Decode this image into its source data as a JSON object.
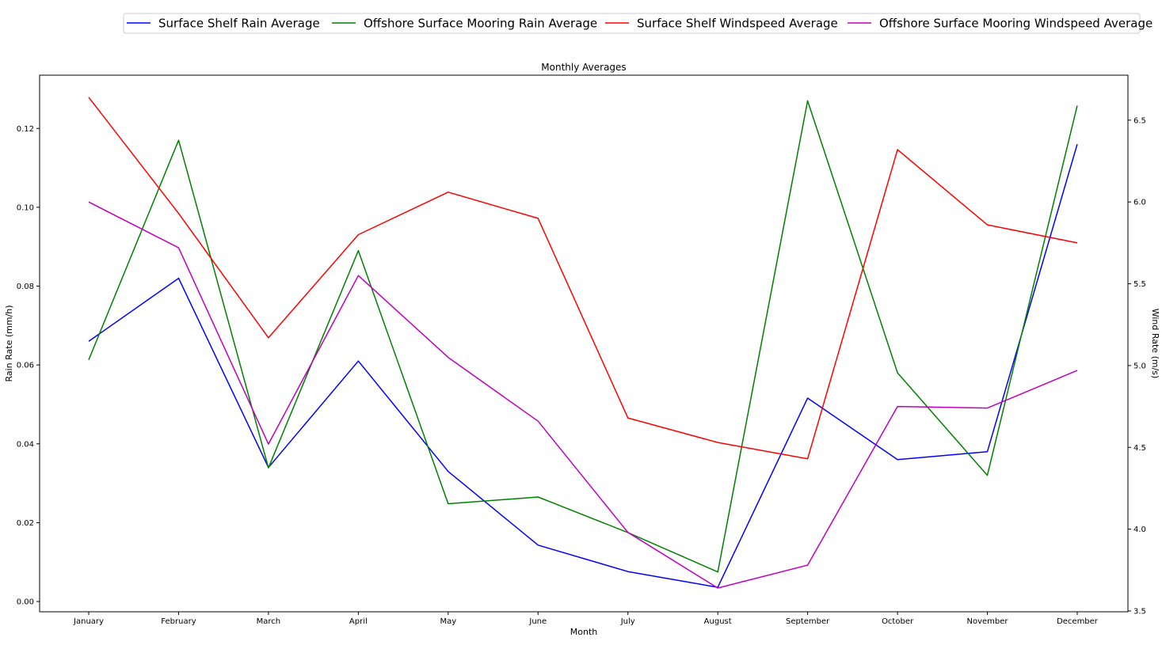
{
  "chart_data": {
    "type": "line",
    "title": "Monthly Averages",
    "xlabel": "Month",
    "ylabel_left": "Rain Rate (mm/h)",
    "ylabel_right": "Wind Rate (m/s)",
    "categories": [
      "January",
      "February",
      "March",
      "April",
      "May",
      "June",
      "July",
      "August",
      "September",
      "October",
      "November",
      "December"
    ],
    "ylim_left": [
      -0.0026,
      0.1335
    ],
    "ylim_right": [
      3.495,
      6.775
    ],
    "yticks_left": [
      "0.00",
      "0.02",
      "0.04",
      "0.06",
      "0.08",
      "0.10",
      "0.12"
    ],
    "yticks_right": [
      "3.5",
      "4.0",
      "4.5",
      "5.0",
      "5.5",
      "6.0",
      "6.5"
    ],
    "legend_position": "top",
    "grid": false,
    "series": [
      {
        "name": "Surface Shelf Rain Average",
        "axis": "left",
        "color": "#0000ff",
        "values": [
          0.066,
          0.082,
          0.034,
          0.061,
          0.033,
          0.0143,
          0.0076,
          0.0036,
          0.0516,
          0.036,
          0.038,
          0.116
        ]
      },
      {
        "name": "Offshore Surface Mooring Rain Average",
        "axis": "left",
        "color": "#008000",
        "values": [
          0.0613,
          0.117,
          0.0339,
          0.089,
          0.0248,
          0.0265,
          0.0175,
          0.0075,
          0.127,
          0.058,
          0.032,
          0.1258
        ]
      },
      {
        "name": "Surface Shelf Windspeed Average",
        "axis": "right",
        "color": "#ff0000",
        "values": [
          6.64,
          5.93,
          5.17,
          5.8,
          6.06,
          5.9,
          4.68,
          4.53,
          4.43,
          6.32,
          5.86,
          5.75
        ]
      },
      {
        "name": "Offshore Surface Mooring Windspeed Average",
        "axis": "right",
        "color": "#bf00bf",
        "values": [
          6.0,
          5.72,
          4.52,
          5.55,
          5.05,
          4.66,
          3.98,
          3.64,
          3.78,
          4.75,
          4.74,
          4.97
        ]
      }
    ]
  }
}
